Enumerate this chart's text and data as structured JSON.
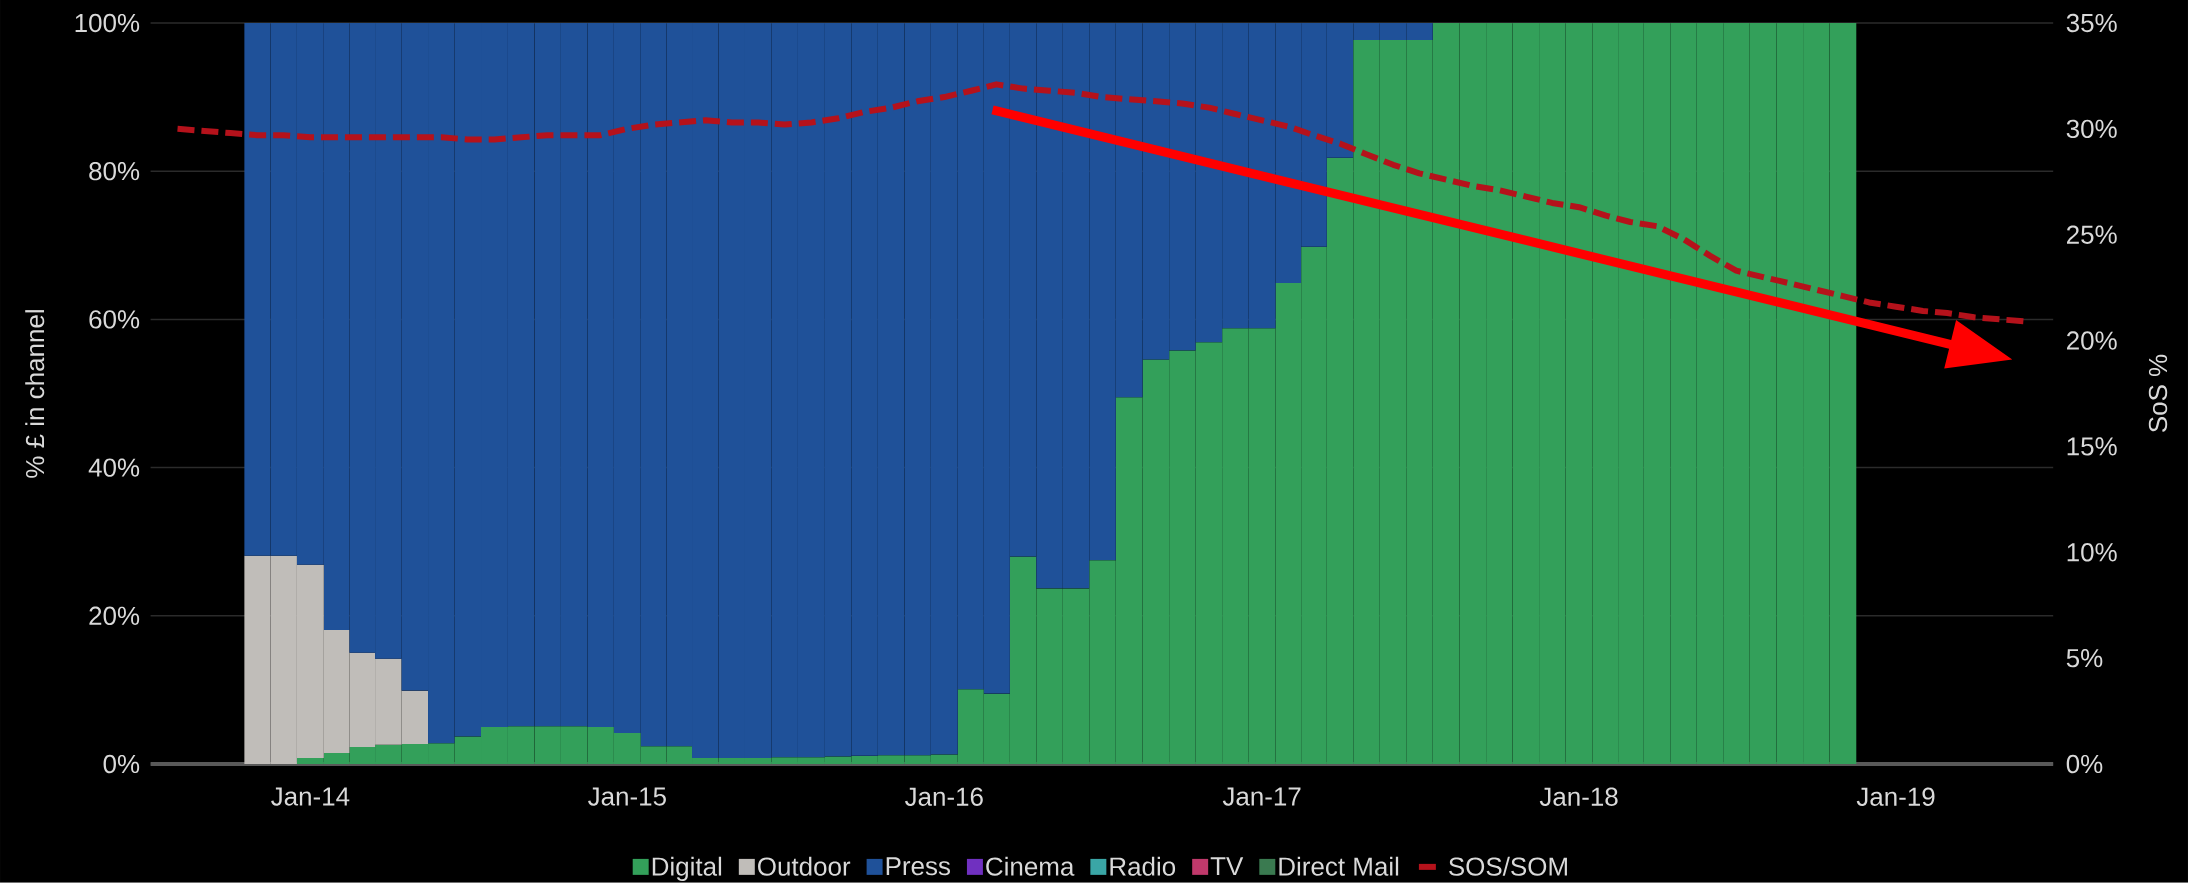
{
  "chart_data": {
    "type": "bar",
    "stacked": true,
    "ylabel": "% £ in channel",
    "y2label": "SoS %",
    "x": [
      "2013-11",
      "2013-12",
      "2014-01",
      "2014-02",
      "2014-03",
      "2014-04",
      "2014-05",
      "2014-06",
      "2014-07",
      "2014-08",
      "2014-09",
      "2014-10",
      "2014-11",
      "2014-12",
      "2015-01",
      "2015-02",
      "2015-03",
      "2015-04",
      "2015-05",
      "2015-06",
      "2015-07",
      "2015-08",
      "2015-09",
      "2015-10",
      "2015-11",
      "2015-12",
      "2016-01",
      "2016-02",
      "2016-03",
      "2016-04",
      "2016-05",
      "2016-06",
      "2016-07",
      "2016-08",
      "2016-09",
      "2016-10",
      "2016-11",
      "2016-12",
      "2017-01",
      "2017-02",
      "2017-03",
      "2017-04",
      "2017-05",
      "2017-06",
      "2017-07",
      "2017-08",
      "2017-09",
      "2017-10",
      "2017-11",
      "2017-12",
      "2018-01",
      "2018-02",
      "2018-03",
      "2018-04",
      "2018-05",
      "2018-06",
      "2018-07",
      "2018-08",
      "2018-09",
      "2018-10",
      "2018-11"
    ],
    "xlim": [
      "2013-07",
      "2019-07"
    ],
    "xticks": [
      {
        "value": "2014-01",
        "label": "Jan-14"
      },
      {
        "value": "2015-01",
        "label": "Jan-15"
      },
      {
        "value": "2016-01",
        "label": "Jan-16"
      },
      {
        "value": "2017-01",
        "label": "Jan-17"
      },
      {
        "value": "2018-01",
        "label": "Jan-18"
      },
      {
        "value": "2019-01",
        "label": "Jan-19"
      }
    ],
    "ylim": [
      0,
      100
    ],
    "yticks": [
      {
        "value": 0,
        "label": "0%"
      },
      {
        "value": 20,
        "label": "20%"
      },
      {
        "value": 40,
        "label": "40%"
      },
      {
        "value": 60,
        "label": "60%"
      },
      {
        "value": 80,
        "label": "80%"
      },
      {
        "value": 100,
        "label": "100%"
      }
    ],
    "y2lim": [
      0,
      35
    ],
    "y2ticks": [
      {
        "value": 0,
        "label": "0%"
      },
      {
        "value": 5,
        "label": "5%"
      },
      {
        "value": 10,
        "label": "10%"
      },
      {
        "value": 15,
        "label": "15%"
      },
      {
        "value": 20,
        "label": "20%"
      },
      {
        "value": 25,
        "label": "25%"
      },
      {
        "value": 30,
        "label": "30%"
      },
      {
        "value": 35,
        "label": "35%"
      }
    ],
    "grid": "y",
    "legend": "bottom",
    "series": [
      {
        "name": "Digital",
        "color": "#33a05a",
        "values": [
          null,
          null,
          0.8,
          1.5,
          2.3,
          2.6,
          2.7,
          2.8,
          3.7,
          5.0,
          5.1,
          5.1,
          5.1,
          5.0,
          4.2,
          2.4,
          2.4,
          0.8,
          0.8,
          0.8,
          0.9,
          0.9,
          1.0,
          1.1,
          1.2,
          1.2,
          1.3,
          10.1,
          9.5,
          28.0,
          23.7,
          23.7,
          27.5,
          49.5,
          54.6,
          55.8,
          56.9,
          58.8,
          58.8,
          64.9,
          69.8,
          81.8,
          97.7,
          97.7,
          97.7,
          100,
          100,
          100,
          100,
          100,
          100,
          100,
          100,
          100,
          100,
          100,
          100,
          100,
          100,
          100,
          100
        ]
      },
      {
        "name": "Outdoor",
        "color": "#c0bdb9",
        "values": [
          28.1,
          28.1,
          26.1,
          16.6,
          12.7,
          11.6,
          7.2,
          null,
          null,
          null,
          null,
          null,
          null,
          null,
          null,
          null,
          null,
          null,
          null,
          null,
          null,
          null,
          null,
          null,
          null,
          null,
          null,
          null,
          null,
          null,
          null,
          null,
          null,
          null,
          null,
          null,
          null,
          null,
          null,
          null,
          null,
          null,
          null,
          null,
          null,
          null,
          null,
          null,
          null,
          null,
          null,
          null,
          null,
          null,
          null,
          null,
          null,
          null,
          null,
          null,
          null
        ]
      },
      {
        "name": "Press",
        "color": "#1f5199",
        "values": [
          71.9,
          71.9,
          73.1,
          81.9,
          85.0,
          85.8,
          90.1,
          97.2,
          96.3,
          95.0,
          94.9,
          94.9,
          94.9,
          95.0,
          95.8,
          97.6,
          97.6,
          99.2,
          99.2,
          99.2,
          99.1,
          99.1,
          99.0,
          98.9,
          98.8,
          98.8,
          98.7,
          89.9,
          90.5,
          72.0,
          76.3,
          76.3,
          72.5,
          50.5,
          45.4,
          44.2,
          43.1,
          41.2,
          41.2,
          35.1,
          30.2,
          18.2,
          2.3,
          2.3,
          2.3,
          null,
          null,
          null,
          null,
          null,
          null,
          null,
          null,
          null,
          null,
          null,
          null,
          null,
          null,
          null,
          null
        ]
      },
      {
        "name": "Cinema",
        "color": "#7030c0",
        "values": [
          null,
          null,
          null,
          null,
          null,
          null,
          null,
          null,
          null,
          null,
          null,
          null,
          null,
          null,
          null,
          null,
          null,
          null,
          null,
          null,
          null,
          null,
          null,
          null,
          null,
          null,
          null,
          null,
          null,
          null,
          null,
          null,
          null,
          null,
          null,
          null,
          null,
          null,
          null,
          null,
          null,
          null,
          null,
          null,
          null,
          null,
          null,
          null,
          null,
          null,
          null,
          null,
          null,
          null,
          null,
          null,
          null,
          null,
          null,
          null,
          null
        ]
      },
      {
        "name": "Radio",
        "color": "#3aa6a6",
        "values": [
          null,
          null,
          null,
          null,
          null,
          null,
          null,
          null,
          null,
          null,
          null,
          null,
          null,
          null,
          null,
          null,
          null,
          null,
          null,
          null,
          null,
          null,
          null,
          null,
          null,
          null,
          null,
          null,
          null,
          null,
          null,
          null,
          null,
          null,
          null,
          null,
          null,
          null,
          null,
          null,
          null,
          null,
          null,
          null,
          null,
          null,
          null,
          null,
          null,
          null,
          null,
          null,
          null,
          null,
          null,
          null,
          null,
          null,
          null,
          null,
          null
        ]
      },
      {
        "name": "TV",
        "color": "#c0396b",
        "values": [
          null,
          null,
          null,
          null,
          null,
          null,
          null,
          null,
          null,
          null,
          null,
          null,
          null,
          null,
          null,
          null,
          null,
          null,
          null,
          null,
          null,
          null,
          null,
          null,
          null,
          null,
          null,
          null,
          null,
          null,
          null,
          null,
          null,
          null,
          null,
          null,
          null,
          null,
          null,
          null,
          null,
          null,
          null,
          null,
          null,
          null,
          null,
          null,
          null,
          null,
          null,
          null,
          null,
          null,
          null,
          null,
          null,
          null,
          null,
          null,
          null
        ]
      },
      {
        "name": "Direct Mail",
        "color": "#3a7a50",
        "values": [
          null,
          null,
          null,
          null,
          null,
          null,
          null,
          null,
          null,
          null,
          null,
          null,
          null,
          null,
          null,
          null,
          null,
          null,
          null,
          null,
          null,
          null,
          null,
          null,
          null,
          null,
          null,
          null,
          null,
          null,
          null,
          null,
          null,
          null,
          null,
          null,
          null,
          null,
          null,
          null,
          null,
          null,
          null,
          null,
          null,
          null,
          null,
          null,
          null,
          null,
          null,
          null,
          null,
          null,
          null,
          null,
          null,
          null,
          null,
          null,
          null
        ]
      },
      {
        "name": "SOS/SOM",
        "type": "line",
        "axis": "y2",
        "line_style": "dashed",
        "color": "#b5121b",
        "x": [
          "2013-08",
          "2013-09",
          "2013-10",
          "2013-11",
          "2013-12",
          "2014-01",
          "2014-02",
          "2014-03",
          "2014-04",
          "2014-05",
          "2014-06",
          "2014-07",
          "2014-08",
          "2014-09",
          "2014-10",
          "2014-11",
          "2014-12",
          "2015-01",
          "2015-02",
          "2015-03",
          "2015-04",
          "2015-05",
          "2015-06",
          "2015-07",
          "2015-08",
          "2015-09",
          "2015-10",
          "2015-11",
          "2015-12",
          "2016-01",
          "2016-02",
          "2016-03",
          "2016-04",
          "2016-05",
          "2016-06",
          "2016-07",
          "2016-08",
          "2016-09",
          "2016-10",
          "2016-11",
          "2016-12",
          "2017-01",
          "2017-02",
          "2017-03",
          "2017-04",
          "2017-05",
          "2017-06",
          "2017-07",
          "2017-08",
          "2017-09",
          "2017-10",
          "2017-11",
          "2017-12",
          "2018-01",
          "2018-02",
          "2018-03",
          "2018-04",
          "2018-05",
          "2018-06",
          "2018-07",
          "2018-08",
          "2018-09",
          "2018-10",
          "2018-11",
          "2018-12",
          "2019-01",
          "2019-02",
          "2019-03",
          "2019-04",
          "2019-05",
          "2019-06"
        ],
        "values": [
          30.0,
          29.9,
          29.8,
          29.7,
          29.7,
          29.6,
          29.6,
          29.6,
          29.6,
          29.6,
          29.6,
          29.5,
          29.5,
          29.6,
          29.7,
          29.7,
          29.7,
          30.0,
          30.2,
          30.3,
          30.4,
          30.3,
          30.3,
          30.2,
          30.3,
          30.5,
          30.8,
          31.0,
          31.3,
          31.5,
          31.8,
          32.1,
          31.9,
          31.8,
          31.7,
          31.5,
          31.4,
          31.3,
          31.2,
          31.0,
          30.7,
          30.4,
          30.1,
          29.7,
          29.3,
          28.8,
          28.3,
          27.9,
          27.6,
          27.3,
          27.1,
          26.8,
          26.5,
          26.3,
          25.9,
          25.6,
          25.4,
          24.8,
          24.0,
          23.3,
          23.0,
          22.7,
          22.4,
          22.1,
          21.8,
          21.6,
          21.4,
          21.3,
          21.1,
          21.0,
          20.9
        ]
      }
    ]
  }
}
